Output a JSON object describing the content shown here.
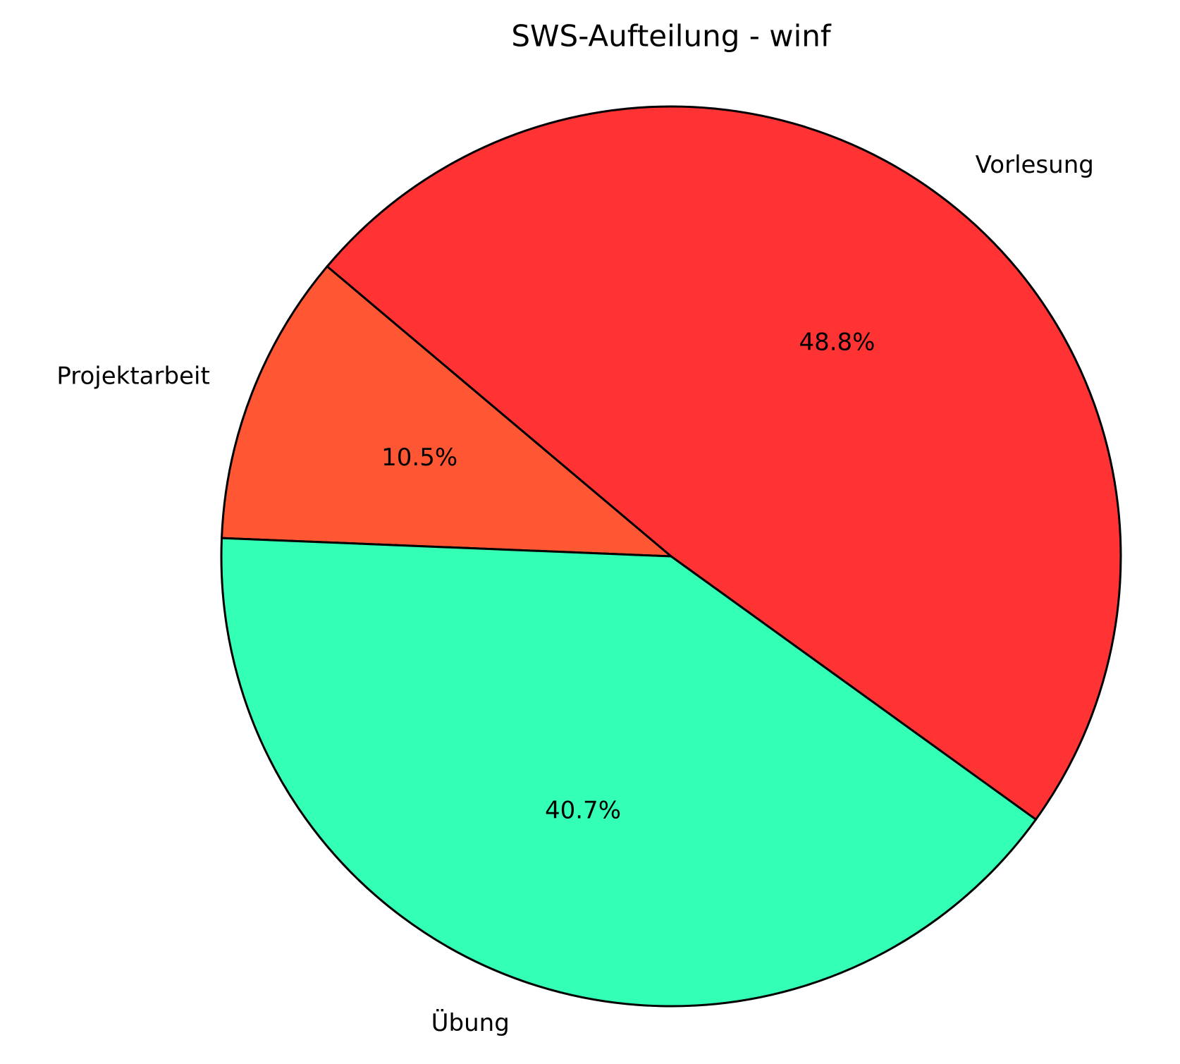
{
  "chart_data": {
    "type": "pie",
    "title": "SWS-Aufteilung - winf",
    "categories": [
      "Vorlesung",
      "Projektarbeit",
      "Übung"
    ],
    "values": [
      48.8,
      10.5,
      40.7
    ],
    "value_labels": [
      "48.8%",
      "10.5%",
      "40.7%"
    ],
    "colors": [
      "#ff3333",
      "#ff5733",
      "#33ffb5"
    ]
  }
}
